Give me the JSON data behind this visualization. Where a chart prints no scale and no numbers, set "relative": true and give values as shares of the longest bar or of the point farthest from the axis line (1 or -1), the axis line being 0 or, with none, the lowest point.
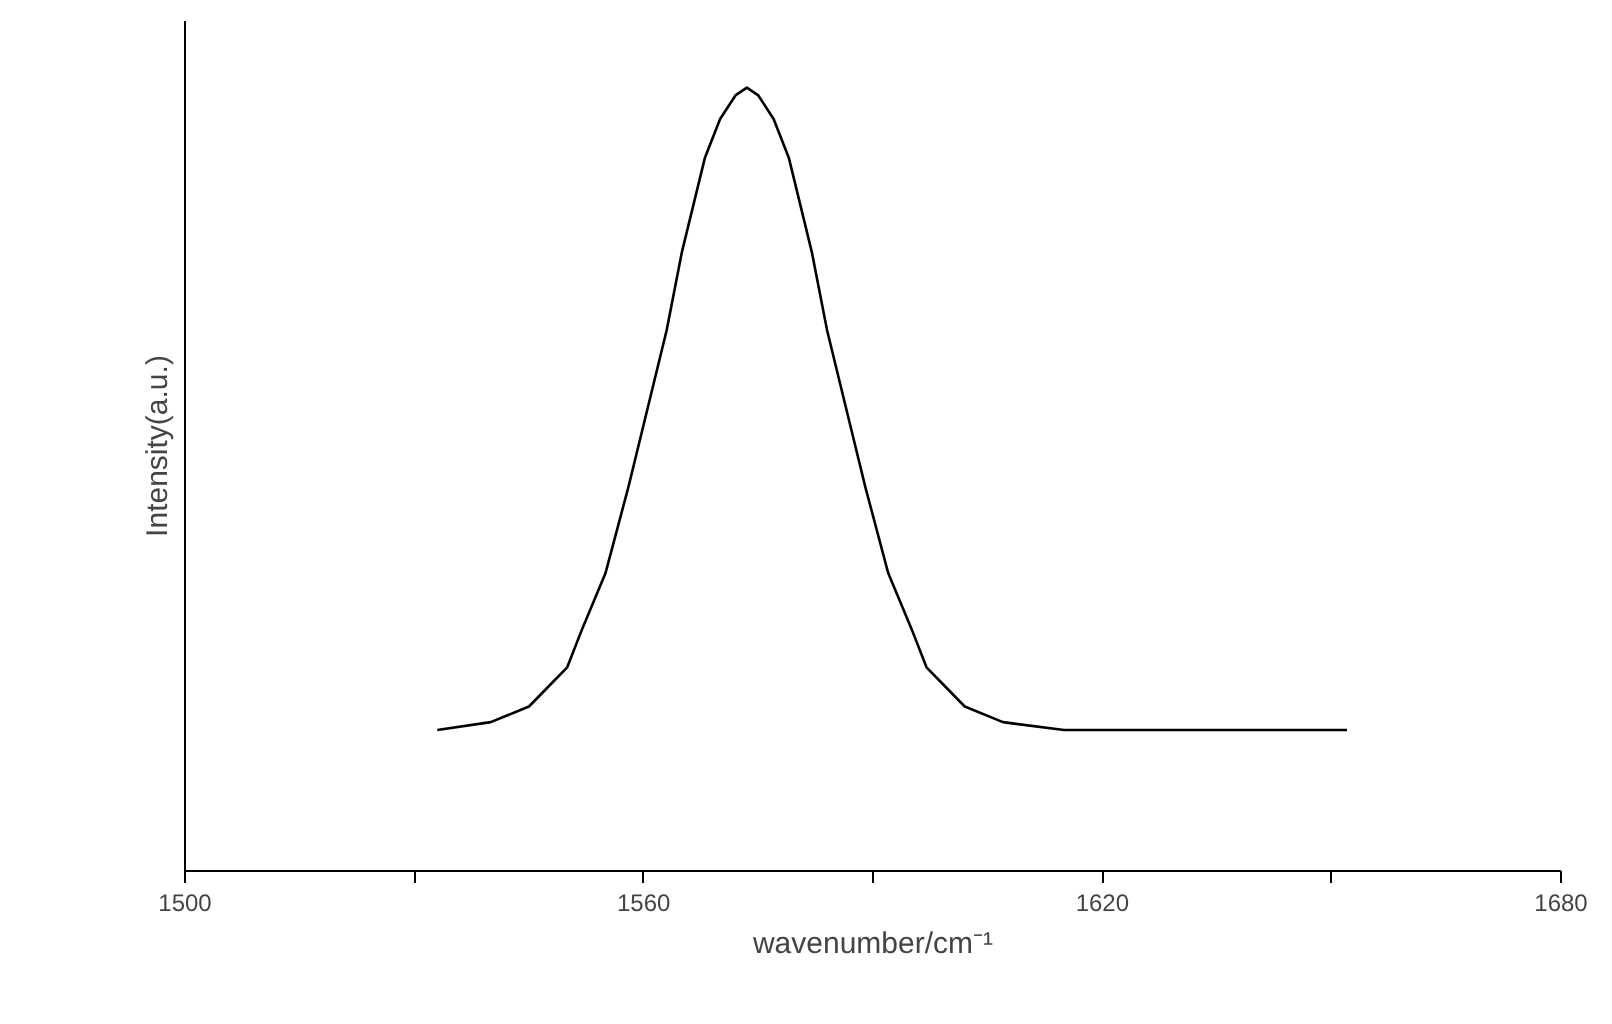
{
  "chart_data": {
    "type": "line",
    "xlabel": "wavenumber/cm⁻¹",
    "ylabel": "Intensity(a.u.)",
    "relative": true,
    "xlim": [
      1500,
      1680
    ],
    "xticks": [
      1500,
      {
        "value": 1530,
        "label": null
      },
      1560,
      {
        "value": 1590,
        "label": null
      },
      1620,
      {
        "value": 1650,
        "label": null
      },
      1680
    ],
    "series": [
      {
        "color": "#000000",
        "x": [
          1533,
          1540,
          1545,
          1548,
          1550,
          1552,
          1555,
          1558,
          1560,
          1563,
          1565,
          1568,
          1570,
          1572,
          1573.5,
          1575,
          1577,
          1579,
          1582,
          1584,
          1587,
          1589,
          1592,
          1595,
          1597,
          1599,
          1602,
          1607,
          1615,
          1652
        ],
        "values": [
          0.18,
          0.19,
          0.21,
          0.24,
          0.26,
          0.31,
          0.38,
          0.49,
          0.57,
          0.69,
          0.79,
          0.91,
          0.96,
          0.99,
          1,
          0.99,
          0.96,
          0.91,
          0.79,
          0.69,
          0.57,
          0.49,
          0.38,
          0.31,
          0.26,
          0.24,
          0.21,
          0.19,
          0.18,
          0.18
        ]
      }
    ]
  }
}
